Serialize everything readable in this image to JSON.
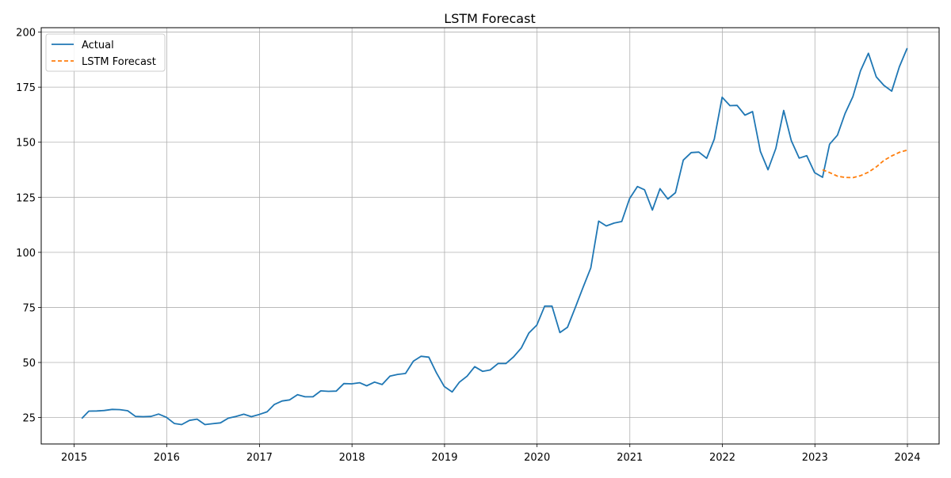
{
  "chart_data": {
    "type": "line",
    "title": "LSTM Forecast",
    "xlabel": "",
    "ylabel": "",
    "xlim": [
      "2014-08-24",
      "2024-05-05"
    ],
    "ylim": [
      13,
      202
    ],
    "x_ticks": [
      "2015",
      "2016",
      "2017",
      "2018",
      "2019",
      "2020",
      "2021",
      "2022",
      "2023",
      "2024"
    ],
    "y_ticks": [
      25,
      50,
      75,
      100,
      125,
      150,
      175,
      200
    ],
    "grid": true,
    "legend_position": "top-left",
    "series": [
      {
        "name": "Actual",
        "color": "#1f77b4",
        "style": "solid",
        "x": [
          "2015-01-31",
          "2015-02-28",
          "2015-03-31",
          "2015-04-30",
          "2015-05-31",
          "2015-06-30",
          "2015-07-31",
          "2015-08-31",
          "2015-09-30",
          "2015-10-31",
          "2015-11-30",
          "2015-12-31",
          "2016-01-31",
          "2016-02-29",
          "2016-03-31",
          "2016-04-30",
          "2016-05-31",
          "2016-06-30",
          "2016-07-31",
          "2016-08-31",
          "2016-09-30",
          "2016-10-31",
          "2016-11-30",
          "2016-12-31",
          "2017-01-31",
          "2017-02-28",
          "2017-03-31",
          "2017-04-30",
          "2017-05-31",
          "2017-06-30",
          "2017-07-31",
          "2017-08-31",
          "2017-09-30",
          "2017-10-31",
          "2017-11-30",
          "2017-12-31",
          "2018-01-31",
          "2018-02-28",
          "2018-03-31",
          "2018-04-30",
          "2018-05-31",
          "2018-06-30",
          "2018-07-31",
          "2018-08-31",
          "2018-09-30",
          "2018-10-31",
          "2018-11-30",
          "2018-12-31",
          "2019-01-31",
          "2019-02-28",
          "2019-03-31",
          "2019-04-30",
          "2019-05-31",
          "2019-06-30",
          "2019-07-31",
          "2019-08-31",
          "2019-09-30",
          "2019-10-31",
          "2019-11-30",
          "2019-12-31",
          "2020-01-31",
          "2020-02-29",
          "2020-03-31",
          "2020-04-30",
          "2020-05-31",
          "2020-06-30",
          "2020-07-31",
          "2020-08-31",
          "2020-09-30",
          "2020-10-31",
          "2020-11-30",
          "2020-12-31",
          "2021-01-31",
          "2021-02-28",
          "2021-03-31",
          "2021-04-30",
          "2021-05-31",
          "2021-06-30",
          "2021-07-31",
          "2021-08-31",
          "2021-09-30",
          "2021-10-31",
          "2021-11-30",
          "2021-12-31",
          "2022-01-31",
          "2022-02-28",
          "2022-03-31",
          "2022-04-30",
          "2022-05-31",
          "2022-06-30",
          "2022-07-31",
          "2022-08-31",
          "2022-09-30",
          "2022-10-31",
          "2022-11-30",
          "2022-12-31",
          "2023-01-31",
          "2023-02-28",
          "2023-03-31",
          "2023-04-30",
          "2023-05-31",
          "2023-06-30",
          "2023-07-31",
          "2023-08-31",
          "2023-09-30",
          "2023-10-31",
          "2023-11-30",
          "2023-12-31"
        ],
        "values": [
          24.6,
          27.9,
          28.0,
          28.2,
          28.7,
          28.6,
          28.1,
          25.5,
          25.4,
          25.5,
          26.6,
          25.1,
          22.3,
          21.8,
          23.7,
          24.3,
          21.8,
          22.2,
          22.6,
          24.7,
          25.5,
          26.5,
          25.4,
          26.4,
          27.6,
          30.9,
          32.5,
          33.0,
          35.4,
          34.4,
          34.4,
          37.1,
          36.9,
          37.0,
          40.4,
          40.3,
          40.8,
          39.4,
          41.1,
          40.0,
          43.8,
          44.6,
          45.0,
          50.6,
          52.8,
          52.4,
          45.3,
          39.1,
          36.6,
          41.0,
          43.8,
          48.1,
          46.0,
          46.6,
          49.5,
          49.5,
          52.5,
          56.6,
          63.4,
          67.0,
          75.6,
          75.6,
          63.6,
          66.0,
          75.0,
          84.0,
          93.0,
          114.2,
          112.0,
          113.3,
          114.0,
          124.4,
          129.9,
          128.4,
          119.2,
          128.9,
          124.2,
          127.1,
          141.9,
          145.3,
          145.5,
          142.7,
          151.4,
          170.4,
          166.6,
          166.7,
          162.3,
          163.9,
          145.8,
          137.5,
          147.2,
          164.4,
          150.7,
          142.8,
          143.9,
          136.2,
          134.1,
          149.1,
          153.2,
          163.0,
          170.7,
          182.4,
          190.4,
          179.7,
          175.8,
          173.2,
          184.2,
          192.7
        ]
      },
      {
        "name": "LSTM Forecast",
        "color": "#ff7f0e",
        "style": "dashed",
        "x": [
          "2023-01-31",
          "2023-02-28",
          "2023-03-31",
          "2023-04-30",
          "2023-05-31",
          "2023-06-30",
          "2023-07-31",
          "2023-08-31",
          "2023-09-30",
          "2023-10-31",
          "2023-11-30",
          "2023-12-31"
        ],
        "values": [
          137.5,
          136.2,
          134.6,
          134.0,
          133.9,
          134.8,
          136.4,
          138.8,
          141.7,
          143.8,
          145.4,
          146.4
        ]
      }
    ]
  }
}
